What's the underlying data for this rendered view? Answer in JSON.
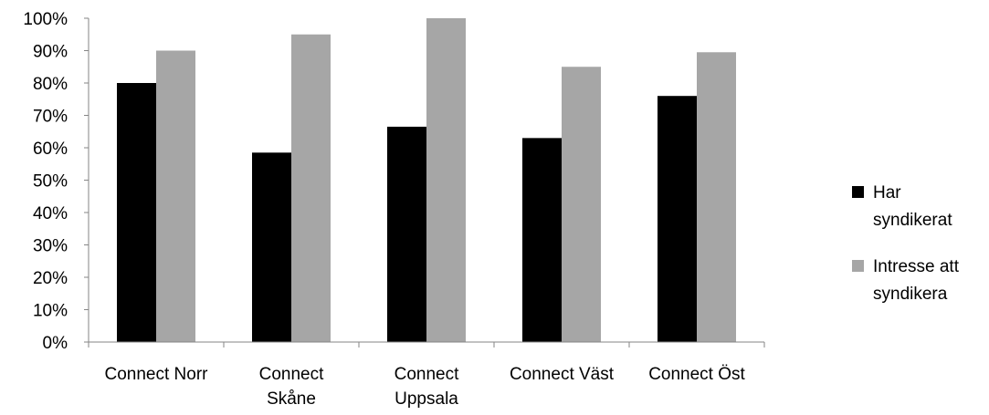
{
  "chart_data": {
    "type": "bar",
    "categories": [
      [
        "Connect Norr"
      ],
      [
        "Connect",
        "Skåne"
      ],
      [
        "Connect",
        "Uppsala"
      ],
      [
        "Connect Väst"
      ],
      [
        "Connect Öst"
      ]
    ],
    "series": [
      {
        "name": [
          "Har",
          "syndikerat"
        ],
        "color": "#000000",
        "values": [
          80,
          58.5,
          66.5,
          63,
          76
        ]
      },
      {
        "name": [
          "Intresse att",
          "syndikera"
        ],
        "color": "#a6a6a6",
        "values": [
          90,
          95,
          100,
          85,
          89.5
        ]
      }
    ],
    "ylim": [
      0,
      100
    ],
    "y_ticks": [
      "0%",
      "10%",
      "20%",
      "30%",
      "40%",
      "50%",
      "60%",
      "70%",
      "80%",
      "90%",
      "100%"
    ],
    "y_tick_values": [
      0,
      10,
      20,
      30,
      40,
      50,
      60,
      70,
      80,
      90,
      100
    ],
    "grid": false,
    "legend_position": "right",
    "title": "",
    "xlabel": "",
    "ylabel": ""
  }
}
